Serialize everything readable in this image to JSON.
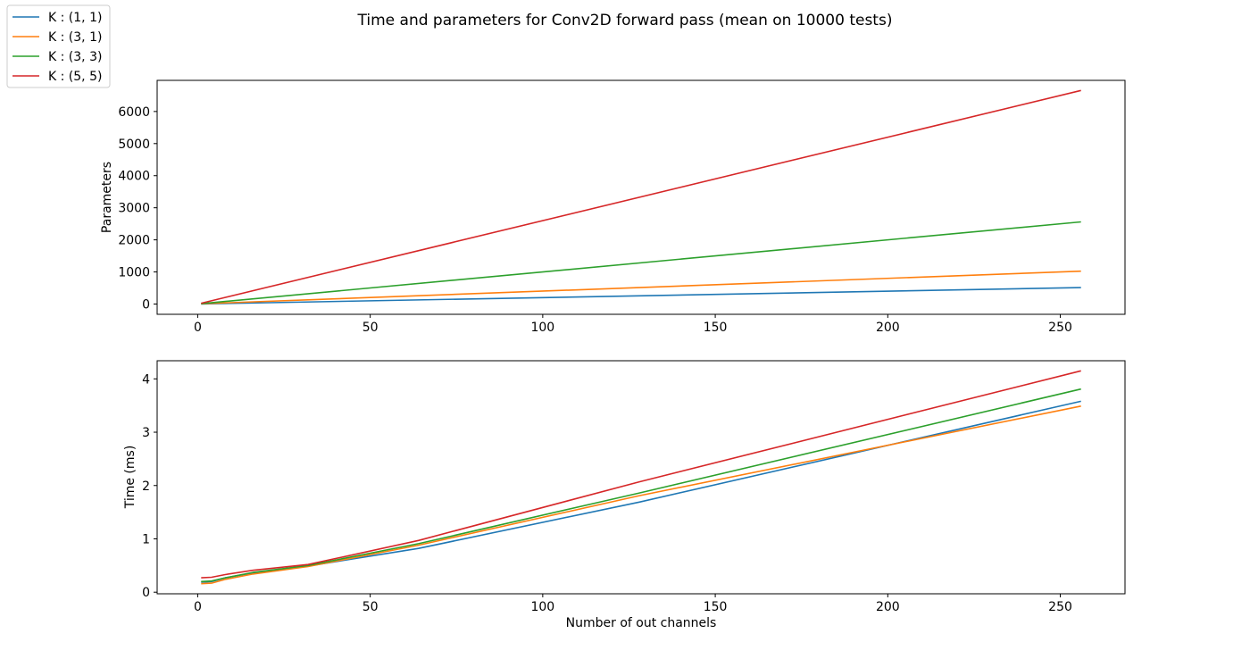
{
  "chart_data": {
    "title": "Time and parameters for Conv2D forward pass (mean on 10000 tests)",
    "legend": {
      "position": "top-left",
      "entries": [
        "K : (1, 1)",
        "K : (3, 1)",
        "K : (3, 3)",
        "K : (5, 5)"
      ]
    },
    "subplots": [
      {
        "type": "line",
        "xlabel": "",
        "ylabel": "Parameters",
        "xlim": [
          -11.75,
          268.75
        ],
        "ylim": [
          -320,
          6970
        ],
        "xticks": [
          0,
          50,
          100,
          150,
          200,
          250
        ],
        "yticks": [
          0,
          1000,
          2000,
          3000,
          4000,
          5000,
          6000
        ],
        "grid": false,
        "series": [
          {
            "name": "K : (1, 1)",
            "color": "#1f77b4",
            "x": [
              1,
              256
            ],
            "y": [
              4,
              512
            ]
          },
          {
            "name": "K : (3, 1)",
            "color": "#ff7f0e",
            "x": [
              1,
              256
            ],
            "y": [
              8,
              1024
            ]
          },
          {
            "name": "K : (3, 3)",
            "color": "#2ca02c",
            "x": [
              1,
              256
            ],
            "y": [
              10,
              2560
            ]
          },
          {
            "name": "K : (5, 5)",
            "color": "#d62728",
            "x": [
              1,
              256
            ],
            "y": [
              26,
              6656
            ]
          }
        ]
      },
      {
        "type": "line",
        "xlabel": "Number of out channels",
        "ylabel": "Time (ms)",
        "xlim": [
          -11.75,
          268.75
        ],
        "ylim": [
          -0.03,
          4.34
        ],
        "xticks": [
          0,
          50,
          100,
          150,
          200,
          250
        ],
        "yticks": [
          0,
          1,
          2,
          3,
          4
        ],
        "grid": false,
        "series": [
          {
            "name": "K : (1, 1)",
            "color": "#1f77b4",
            "x": [
              1,
              4,
              8,
              16,
              32,
              64,
              128,
              256
            ],
            "y": [
              0.19,
              0.2,
              0.27,
              0.36,
              0.49,
              0.82,
              1.69,
              3.58
            ]
          },
          {
            "name": "K : (3, 1)",
            "color": "#ff7f0e",
            "x": [
              1,
              4,
              8,
              16,
              32,
              64,
              128,
              256
            ],
            "y": [
              0.16,
              0.17,
              0.24,
              0.34,
              0.48,
              0.88,
              1.81,
              3.49
            ]
          },
          {
            "name": "K : (3, 3)",
            "color": "#2ca02c",
            "x": [
              1,
              4,
              8,
              16,
              32,
              64,
              128,
              256
            ],
            "y": [
              0.2,
              0.21,
              0.27,
              0.37,
              0.5,
              0.91,
              1.86,
              3.81
            ]
          },
          {
            "name": "K : (5, 5)",
            "color": "#d62728",
            "x": [
              1,
              4,
              8,
              16,
              32,
              64,
              128,
              256
            ],
            "y": [
              0.27,
              0.28,
              0.33,
              0.41,
              0.52,
              0.97,
              2.07,
              4.15
            ]
          }
        ]
      }
    ]
  }
}
